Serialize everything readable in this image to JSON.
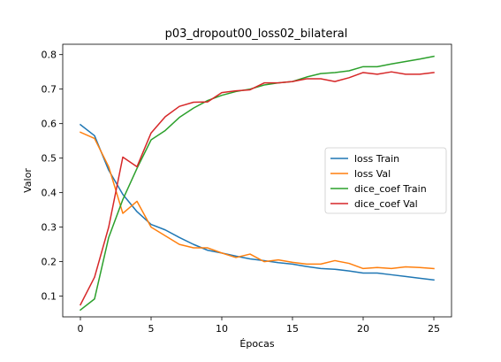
{
  "chart_data": {
    "type": "line",
    "title": "p03_dropout00_loss02_bilateral",
    "xlabel": "Épocas",
    "ylabel": "Valor",
    "xlim": [
      -1.25,
      26.25
    ],
    "ylim": [
      0.04,
      0.83
    ],
    "xticks": [
      0,
      5,
      10,
      15,
      20,
      25
    ],
    "yticks": [
      0.1,
      0.2,
      0.3,
      0.4,
      0.5,
      0.6,
      0.7,
      0.8
    ],
    "ytick_labels": [
      "0.1",
      "0.2",
      "0.3",
      "0.4",
      "0.5",
      "0.6",
      "0.7",
      "0.8"
    ],
    "grid": false,
    "legend_position": "center-right",
    "x": [
      0,
      1,
      2,
      3,
      4,
      5,
      6,
      7,
      8,
      9,
      10,
      11,
      12,
      13,
      14,
      15,
      16,
      17,
      18,
      19,
      20,
      21,
      22,
      23,
      24,
      25
    ],
    "series": [
      {
        "name": "loss Train",
        "color": "#1f77b4",
        "values": [
          0.597,
          0.565,
          0.465,
          0.395,
          0.345,
          0.308,
          0.292,
          0.27,
          0.25,
          0.233,
          0.225,
          0.216,
          0.208,
          0.203,
          0.197,
          0.193,
          0.186,
          0.18,
          0.178,
          0.173,
          0.167,
          0.167,
          0.162,
          0.157,
          0.152,
          0.147
        ]
      },
      {
        "name": "loss Val",
        "color": "#ff7f0e",
        "values": [
          0.575,
          0.557,
          0.475,
          0.34,
          0.375,
          0.3,
          0.275,
          0.25,
          0.24,
          0.24,
          0.225,
          0.212,
          0.222,
          0.2,
          0.205,
          0.198,
          0.193,
          0.193,
          0.203,
          0.195,
          0.18,
          0.183,
          0.18,
          0.185,
          0.183,
          0.18
        ]
      },
      {
        "name": "dice_coef Train",
        "color": "#2ca02c",
        "values": [
          0.06,
          0.092,
          0.27,
          0.38,
          0.47,
          0.553,
          0.58,
          0.618,
          0.645,
          0.667,
          0.682,
          0.693,
          0.7,
          0.712,
          0.718,
          0.722,
          0.735,
          0.745,
          0.748,
          0.753,
          0.765,
          0.765,
          0.773,
          0.78,
          0.787,
          0.795
        ]
      },
      {
        "name": "dice_coef Val",
        "color": "#d62728",
        "values": [
          0.075,
          0.155,
          0.3,
          0.503,
          0.475,
          0.573,
          0.62,
          0.65,
          0.662,
          0.663,
          0.69,
          0.695,
          0.698,
          0.718,
          0.718,
          0.722,
          0.73,
          0.73,
          0.722,
          0.733,
          0.748,
          0.743,
          0.75,
          0.743,
          0.743,
          0.748
        ]
      }
    ]
  }
}
